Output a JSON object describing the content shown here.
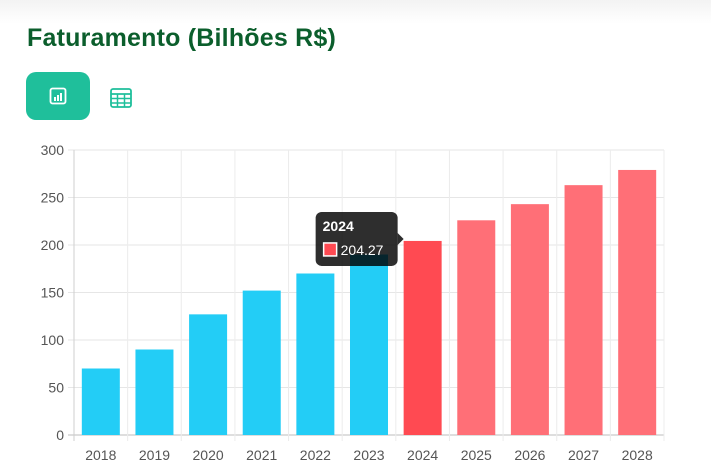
{
  "title": "Faturamento (Bilhões R$)",
  "toolbar": {
    "chart_view_icon": "bar-chart-icon",
    "table_view_icon": "table-grid-icon"
  },
  "colors": {
    "historical": "#23cdf6",
    "projected": "#ff6f77",
    "highlighted": "#ff4a52",
    "accent": "#1fbf9b",
    "title": "#0b5e2c"
  },
  "chart_data": {
    "type": "bar",
    "title": "Faturamento (Bilhões R$)",
    "xlabel": "",
    "ylabel": "",
    "categories": [
      "2018",
      "2019",
      "2020",
      "2021",
      "2022",
      "2023",
      "2024",
      "2025",
      "2026",
      "2027",
      "2028"
    ],
    "values": [
      70,
      90,
      127,
      152,
      170,
      190,
      204.27,
      226,
      243,
      263,
      279
    ],
    "ylim": [
      0,
      300
    ],
    "yticks": [
      0,
      50,
      100,
      150,
      200,
      250,
      300
    ],
    "grid": true,
    "historical_until": "2023",
    "highlighted": "2024",
    "tooltip": {
      "title": "2024",
      "value": "204.27"
    }
  }
}
